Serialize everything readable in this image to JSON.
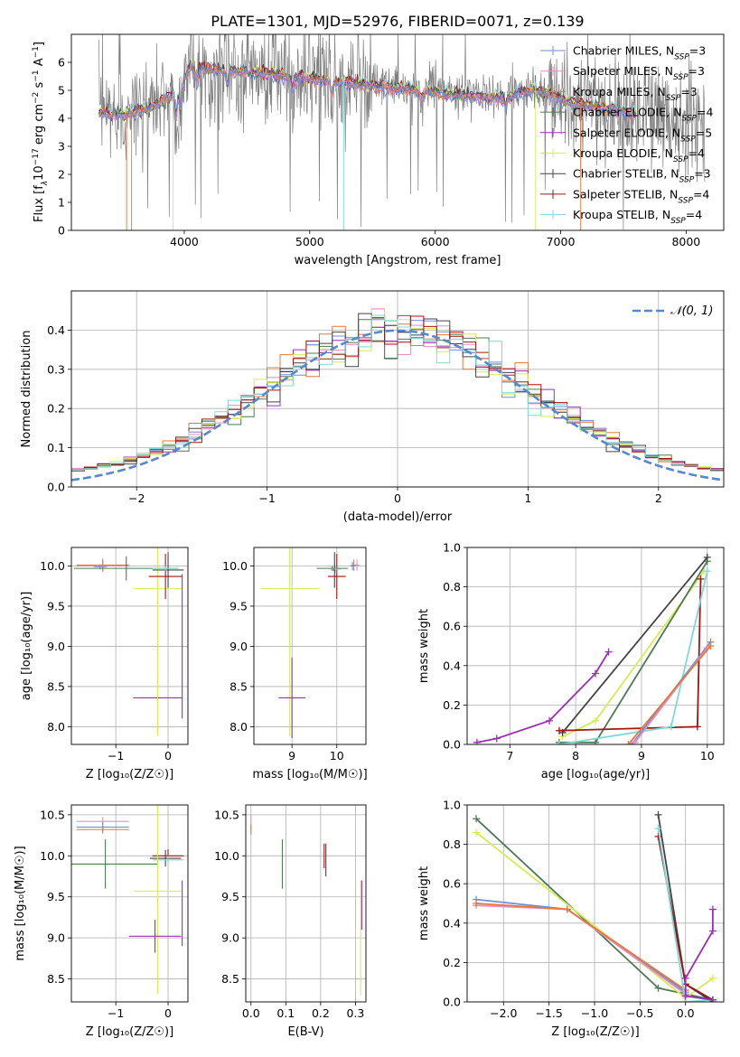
{
  "page_title": "PLATE=1301, MJD=52976, FIBERID=0071, z=0.139",
  "colors": {
    "Chabrier MILES": "#6f8fd6",
    "Salpeter MILES": "#e38fbf",
    "Kroupa MILES": "#e6783c",
    "Chabrier ELODIE": "#4f7a55",
    "Salpeter ELODIE": "#9b30b3",
    "Kroupa ELODIE": "#d6ec55",
    "Chabrier STELIB": "#444444",
    "Salpeter STELIB": "#a01515",
    "Kroupa STELIB": "#7fd9d6",
    "data": "#7f7f7f",
    "gauss": "#5588cc"
  },
  "chart_data": [
    {
      "id": "spectrum",
      "type": "line",
      "title": "PLATE=1301, MJD=52976, FIBERID=0071, z=0.139",
      "xlabel": "wavelength [Angstrom, rest frame]",
      "ylabel_main": "Flux [f",
      "ylabel_lambda": "λ",
      "ylabel_e17": "10",
      "ylabel_exp1": "−17",
      "ylabel_mid": " erg cm",
      "ylabel_exp2": "−2",
      "ylabel_mid2": " s",
      "ylabel_exp3": "−1",
      "ylabel_end": " A",
      "ylabel_exp4": "−1",
      "ylabel_close": "]",
      "xlim": [
        3100,
        8300
      ],
      "ylim": [
        0,
        7
      ],
      "xticks": [
        4000,
        5000,
        6000,
        7000,
        8000
      ],
      "yticks": [
        0,
        1,
        2,
        3,
        4,
        5,
        6
      ],
      "continuum_anchors": [
        [
          3320,
          4.3
        ],
        [
          3500,
          4.2
        ],
        [
          3700,
          4.4
        ],
        [
          3900,
          4.9
        ],
        [
          4050,
          5.9
        ],
        [
          4300,
          5.8
        ],
        [
          4600,
          5.7
        ],
        [
          5000,
          5.5
        ],
        [
          5400,
          5.3
        ],
        [
          5800,
          5.1
        ],
        [
          6200,
          4.9
        ],
        [
          6500,
          4.8
        ],
        [
          6800,
          5.1
        ],
        [
          7100,
          4.6
        ],
        [
          7400,
          4.4
        ],
        [
          7700,
          4.2
        ],
        [
          8000,
          4.1
        ],
        [
          8150,
          4.0
        ]
      ],
      "legend": [
        {
          "label": "Chabrier MILES, N",
          "sub": "SSP",
          "n": "=3"
        },
        {
          "label": "Salpeter MILES, N",
          "sub": "SSP",
          "n": "=3"
        },
        {
          "label": "Kroupa MILES, N",
          "sub": "SSP",
          "n": "=3"
        },
        {
          "label": "Chabrier ELODIE, N",
          "sub": "SSP",
          "n": "=4"
        },
        {
          "label": "Salpeter ELODIE, N",
          "sub": "SSP",
          "n": "=5"
        },
        {
          "label": "Kroupa ELODIE, N",
          "sub": "SSP",
          "n": "=4"
        },
        {
          "label": "Chabrier STELIB, N",
          "sub": "SSP",
          "n": "=3"
        },
        {
          "label": "Salpeter STELIB, N",
          "sub": "SSP",
          "n": "=4"
        },
        {
          "label": "Kroupa STELIB, N",
          "sub": "SSP",
          "n": "=4"
        }
      ]
    },
    {
      "id": "residuals",
      "type": "step",
      "xlabel": "(data-model)/error",
      "ylabel": "Normed distribution",
      "xlim": [
        -2.5,
        2.5
      ],
      "ylim": [
        0,
        0.5
      ],
      "xticks": [
        -2,
        -1,
        0,
        1,
        2
      ],
      "yticks": [
        0.0,
        0.1,
        0.2,
        0.3,
        0.4
      ],
      "legend_label": "𝒩(0, 1)",
      "bin_width": 0.1
    },
    {
      "id": "age_vs_Z",
      "type": "errorbar",
      "xlabel": "Z [log₁₀(Z/Z☉)]",
      "ylabel": "age  [log₁₀(age/yr)]",
      "xlim": [
        -1.85,
        0.38
      ],
      "ylim": [
        7.78,
        10.23
      ],
      "xticks": [
        -1,
        0
      ],
      "yticks": [
        8.0,
        8.5,
        9.0,
        9.5,
        10.0
      ],
      "points": [
        {
          "m": "Chabrier MILES",
          "x": -1.3,
          "xe": 0.12,
          "y": 9.99,
          "ye": 0.03
        },
        {
          "m": "Salpeter MILES",
          "x": -1.25,
          "xe": 0.5,
          "y": 10.0,
          "ye": 0.07
        },
        {
          "m": "Kroupa MILES",
          "x": -1.25,
          "xe": 0.5,
          "y": 10.01,
          "ye": 0.08
        },
        {
          "m": "Chabrier ELODIE",
          "x": -0.8,
          "xe": 1.0,
          "y": 9.97,
          "ye": 0.15
        },
        {
          "m": "Salpeter ELODIE",
          "x": -0.2,
          "xe": 0.47,
          "y": 8.36,
          "ye": 0.0
        },
        {
          "m": "Kroupa ELODIE",
          "x": -0.2,
          "xe": 0.47,
          "y": 9.72,
          "ye": 1.84
        },
        {
          "m": "Chabrier STELIB",
          "x": 0.0,
          "xe": 0.3,
          "y": 9.95,
          "ye": 0.22
        },
        {
          "m": "Salpeter STELIB",
          "x": -0.05,
          "xe": 0.32,
          "y": 9.87,
          "ye": 0.28
        },
        {
          "m": "Kroupa STELIB",
          "x": -0.05,
          "xe": 0.25,
          "y": 9.97,
          "ye": 0.03
        },
        {
          "m": "Salpeter ELODIE",
          "x": 0.27,
          "xe": 0.0,
          "y": 9.0,
          "ye": 0.9
        }
      ]
    },
    {
      "id": "age_vs_mass",
      "type": "errorbar",
      "xlabel": "mass [log₁₀(M/M☉)]",
      "ylabel": "",
      "xlim": [
        8.15,
        10.65
      ],
      "ylim": [
        7.78,
        10.23
      ],
      "xticks": [
        9,
        10
      ],
      "yticks": [
        8.0,
        8.5,
        9.0,
        9.5,
        10.0
      ],
      "points": [
        {
          "m": "Kroupa ELODIE",
          "x": 8.95,
          "xe": 0.65,
          "y": 9.72,
          "ye": 1.84
        },
        {
          "m": "Salpeter ELODIE",
          "x": 9.0,
          "xe": 0.3,
          "y": 8.36,
          "ye": 0.5
        },
        {
          "m": "Chabrier ELODIE",
          "x": 9.9,
          "xe": 0.35,
          "y": 9.97,
          "ye": 0.03
        },
        {
          "m": "Salpeter STELIB",
          "x": 10.0,
          "xe": 0.2,
          "y": 9.87,
          "ye": 0.28
        },
        {
          "m": "Chabrier STELIB",
          "x": 9.95,
          "xe": 0.05,
          "y": 9.95,
          "ye": 0.22
        },
        {
          "m": "Kroupa STELIB",
          "x": 9.98,
          "xe": 0.12,
          "y": 9.96,
          "ye": 0.05
        },
        {
          "m": "Chabrier MILES",
          "x": 10.35,
          "xe": 0.05,
          "y": 10.0,
          "ye": 0.05
        },
        {
          "m": "Salpeter MILES",
          "x": 10.45,
          "xe": 0.06,
          "y": 10.01,
          "ye": 0.07
        },
        {
          "m": "Kroupa MILES",
          "x": 10.38,
          "xe": 0.06,
          "y": 10.01,
          "ye": 0.07
        }
      ]
    },
    {
      "id": "weight_vs_age",
      "type": "line",
      "xlabel": "age  [log₁₀(age/yr)]",
      "ylabel": "mass weight",
      "xlim": [
        6.35,
        10.25
      ],
      "ylim": [
        0,
        1.0
      ],
      "xticks": [
        7,
        8,
        9,
        10
      ],
      "yticks": [
        0.0,
        0.2,
        0.4,
        0.6,
        0.8,
        1.0
      ],
      "series": [
        {
          "m": "Salpeter ELODIE",
          "x": [
            6.5,
            6.8,
            7.6,
            8.3,
            8.5
          ],
          "y": [
            0.01,
            0.03,
            0.12,
            0.36,
            0.47
          ]
        },
        {
          "m": "Kroupa ELODIE",
          "x": [
            7.8,
            8.3,
            9.95
          ],
          "y": [
            0.04,
            0.12,
            0.88
          ]
        },
        {
          "m": "Chabrier ELODIE",
          "x": [
            7.75,
            8.3,
            10.0
          ],
          "y": [
            0.01,
            0.01,
            0.93
          ]
        },
        {
          "m": "Chabrier STELIB",
          "x": [
            7.8,
            10.0
          ],
          "y": [
            0.06,
            0.95
          ]
        },
        {
          "m": "Salpeter STELIB",
          "x": [
            7.75,
            9.85,
            9.9
          ],
          "y": [
            0.07,
            0.09,
            0.84
          ]
        },
        {
          "m": "Kroupa STELIB",
          "x": [
            7.75,
            9.45,
            10.0
          ],
          "y": [
            0.0,
            0.09,
            0.88
          ]
        },
        {
          "m": "Chabrier MILES",
          "x": [
            8.85,
            10.05
          ],
          "y": [
            0.0,
            0.52
          ]
        },
        {
          "m": "Salpeter MILES",
          "x": [
            8.9,
            10.0
          ],
          "y": [
            0.01,
            0.49
          ]
        },
        {
          "m": "Kroupa MILES",
          "x": [
            8.8,
            10.05
          ],
          "y": [
            0.0,
            0.5
          ]
        }
      ]
    },
    {
      "id": "mass_vs_Z",
      "type": "errorbar",
      "xlabel": "Z [log₁₀(Z/Z☉)]",
      "ylabel": "mass [log₁₀(M/M☉)]",
      "xlim": [
        -1.85,
        0.38
      ],
      "ylim": [
        8.22,
        10.62
      ],
      "xticks": [
        -1,
        0
      ],
      "yticks": [
        8.5,
        9.0,
        9.5,
        10.0,
        10.5
      ],
      "points": [
        {
          "m": "Salpeter MILES",
          "x": -1.25,
          "xe": 0.5,
          "y": 10.42,
          "ye": 0.05
        },
        {
          "m": "Chabrier MILES",
          "x": -1.25,
          "xe": 0.5,
          "y": 10.35,
          "ye": 0.06
        },
        {
          "m": "Kroupa MILES",
          "x": -1.25,
          "xe": 0.5,
          "y": 10.32,
          "ye": 0.05
        },
        {
          "m": "Chabrier ELODIE",
          "x": -1.2,
          "xe": 1.0,
          "y": 9.9,
          "ye": 0.3
        },
        {
          "m": "Salpeter STELIB",
          "x": 0.0,
          "xe": 0.3,
          "y": 10.0,
          "ye": 0.08
        },
        {
          "m": "Chabrier STELIB",
          "x": -0.05,
          "xe": 0.3,
          "y": 9.97,
          "ye": 0.1
        },
        {
          "m": "Kroupa STELIB",
          "x": 0.0,
          "xe": 0.3,
          "y": 9.95,
          "ye": 0.05
        },
        {
          "m": "Kroupa ELODIE",
          "x": -0.2,
          "xe": 0.45,
          "y": 9.57,
          "ye": 1.25
        },
        {
          "m": "Salpeter ELODIE",
          "x": -0.25,
          "xe": 0.5,
          "y": 9.02,
          "ye": 0.2
        },
        {
          "m": "Salpeter ELODIE",
          "x": 0.27,
          "xe": 0.0,
          "y": 9.3,
          "ye": 0.4
        }
      ]
    },
    {
      "id": "mass_vs_EBV",
      "type": "errorbar",
      "xlabel": "E(B-V)",
      "ylabel": "",
      "xlim": [
        -0.015,
        0.33
      ],
      "ylim": [
        8.22,
        10.62
      ],
      "xticks": [
        0.0,
        0.1,
        0.2,
        0.3
      ],
      "yticks": [
        8.5,
        9.0,
        9.5,
        10.0,
        10.5
      ],
      "points": [
        {
          "m": "Salpeter MILES",
          "x": 0.0,
          "xe": 0.0,
          "y": 10.4,
          "ye": 0.1
        },
        {
          "m": "Kroupa MILES",
          "x": 0.0,
          "xe": 0.0,
          "y": 10.32,
          "ye": 0.06
        },
        {
          "m": "Chabrier ELODIE",
          "x": 0.09,
          "xe": 0.0,
          "y": 9.9,
          "ye": 0.3
        },
        {
          "m": "Salpeter STELIB",
          "x": 0.21,
          "xe": 0.0,
          "y": 10.0,
          "ye": 0.15
        },
        {
          "m": "Chabrier STELIB",
          "x": 0.215,
          "xe": 0.0,
          "y": 9.95,
          "ye": 0.2
        },
        {
          "m": "Kroupa ELODIE",
          "x": 0.315,
          "xe": 0.0,
          "y": 9.0,
          "ye": 0.7
        },
        {
          "m": "Salpeter ELODIE",
          "x": 0.318,
          "xe": 0.0,
          "y": 9.4,
          "ye": 0.3
        }
      ]
    },
    {
      "id": "weight_vs_Z",
      "type": "line",
      "xlabel": "Z [log₁₀(Z/Z☉)]",
      "ylabel": "mass weight",
      "xlim": [
        -2.4,
        0.42
      ],
      "ylim": [
        0,
        1.0
      ],
      "xticks": [
        -2.0,
        -1.5,
        -1.0,
        -0.5,
        0.0
      ],
      "yticks": [
        0.0,
        0.2,
        0.4,
        0.6,
        0.8,
        1.0
      ],
      "series": [
        {
          "m": "Chabrier ELODIE",
          "x": [
            -2.3,
            -0.3,
            0.3
          ],
          "y": [
            0.93,
            0.07,
            0.01
          ]
        },
        {
          "m": "Kroupa ELODIE",
          "x": [
            -2.3,
            0.0,
            0.3
          ],
          "y": [
            0.86,
            0.02,
            0.12
          ]
        },
        {
          "m": "Chabrier MILES",
          "x": [
            -2.3,
            -1.3,
            0.0
          ],
          "y": [
            0.52,
            0.47,
            0.05
          ]
        },
        {
          "m": "Salpeter MILES",
          "x": [
            -2.3,
            -1.3,
            0.0
          ],
          "y": [
            0.49,
            0.47,
            0.04
          ]
        },
        {
          "m": "Kroupa MILES",
          "x": [
            -2.3,
            -1.3,
            0.0
          ],
          "y": [
            0.5,
            0.47,
            0.06
          ]
        },
        {
          "m": "Chabrier STELIB",
          "x": [
            -0.3,
            0.0,
            0.3
          ],
          "y": [
            0.95,
            0.09,
            0.0
          ]
        },
        {
          "m": "Salpeter STELIB",
          "x": [
            -0.3,
            0.0,
            0.3
          ],
          "y": [
            0.84,
            0.09,
            0.01
          ]
        },
        {
          "m": "Kroupa STELIB",
          "x": [
            -0.3,
            0.0,
            0.3
          ],
          "y": [
            0.88,
            0.0,
            0.01
          ]
        },
        {
          "m": "Salpeter ELODIE",
          "x": [
            0.3,
            0.3,
            0.0,
            0.0,
            0.3
          ],
          "y": [
            0.47,
            0.36,
            0.12,
            0.03,
            0.01
          ]
        }
      ]
    }
  ]
}
